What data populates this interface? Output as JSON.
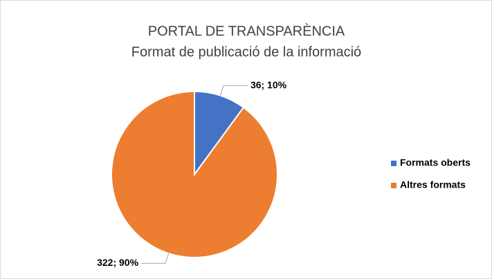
{
  "chart_data": {
    "type": "pie",
    "title": "PORTAL DE TRANSPARÈNCIA",
    "subtitle": "Format de publicació de la informació",
    "categories": [
      "Formats oberts",
      "Altres formats"
    ],
    "values": [
      36,
      322
    ],
    "value_labels": [
      "36; 10%",
      "322; 90%"
    ],
    "colors": [
      "#4472c4",
      "#ed7d31"
    ],
    "legend": "right"
  }
}
